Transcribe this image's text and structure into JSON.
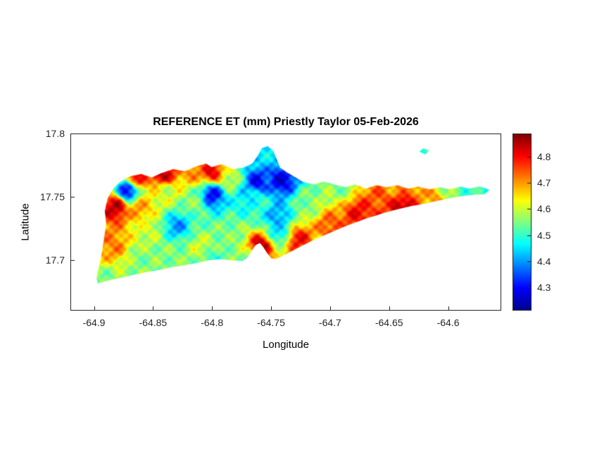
{
  "figure": {
    "background_color": "#ffffff",
    "axes_color": "#262626",
    "text_color": "#000000"
  },
  "chart_data": {
    "type": "heatmap",
    "title": "REFERENCE ET (mm) Priestly Taylor 05-Feb-2026",
    "xlabel": "Longitude",
    "ylabel": "Latitude",
    "xlim": [
      -64.92,
      -64.555
    ],
    "ylim": [
      17.66,
      17.8
    ],
    "grid": false,
    "xticks": {
      "values": [
        -64.9,
        -64.85,
        -64.8,
        -64.75,
        -64.7,
        -64.65,
        -64.6
      ],
      "labels": [
        "-64.9",
        "-64.85",
        "-64.8",
        "-64.75",
        "-64.7",
        "-64.65",
        "-64.6"
      ]
    },
    "yticks": {
      "values": [
        17.8,
        17.75,
        17.7
      ],
      "labels": [
        "17.8",
        "17.75",
        "17.7"
      ]
    },
    "colorbar": {
      "position": "right",
      "clim": [
        4.21,
        4.89
      ],
      "colormap_name": "jet",
      "colormap_stops": [
        [
          0.0,
          0,
          0,
          143
        ],
        [
          0.125,
          0,
          0,
          255
        ],
        [
          0.375,
          0,
          255,
          255
        ],
        [
          0.625,
          255,
          255,
          0
        ],
        [
          0.875,
          255,
          0,
          0
        ],
        [
          1.0,
          128,
          0,
          0
        ]
      ],
      "ticks": {
        "values": [
          4.3,
          4.4,
          4.5,
          4.6,
          4.7,
          4.8
        ],
        "labels": [
          "4.3",
          "4.4",
          "4.5",
          "4.6",
          "4.7",
          "4.8"
        ]
      }
    },
    "island_outline": [
      [
        -64.8902,
        17.7289
      ],
      [
        -64.8914,
        17.7389
      ],
      [
        -64.889,
        17.7489
      ],
      [
        -64.8842,
        17.7567
      ],
      [
        -64.8783,
        17.7622
      ],
      [
        -64.8693,
        17.7667
      ],
      [
        -64.8604,
        17.7683
      ],
      [
        -64.8514,
        17.7656
      ],
      [
        -64.8437,
        17.7689
      ],
      [
        -64.8335,
        17.7722
      ],
      [
        -64.8234,
        17.7706
      ],
      [
        -64.8138,
        17.7744
      ],
      [
        -64.8055,
        17.7767
      ],
      [
        -64.8007,
        17.7739
      ],
      [
        -64.7918,
        17.7761
      ],
      [
        -64.7828,
        17.7722
      ],
      [
        -64.7739,
        17.7733
      ],
      [
        -64.7661,
        17.7767
      ],
      [
        -64.7619,
        17.7822
      ],
      [
        -64.7578,
        17.7889
      ],
      [
        -64.753,
        17.7906
      ],
      [
        -64.7482,
        17.7867
      ],
      [
        -64.7452,
        17.78
      ],
      [
        -64.7423,
        17.7733
      ],
      [
        -64.7363,
        17.7694
      ],
      [
        -64.7291,
        17.7656
      ],
      [
        -64.7232,
        17.7622
      ],
      [
        -64.7142,
        17.76
      ],
      [
        -64.7053,
        17.7622
      ],
      [
        -64.6963,
        17.76
      ],
      [
        -64.6874,
        17.7578
      ],
      [
        -64.6784,
        17.76
      ],
      [
        -64.6695,
        17.7567
      ],
      [
        -64.6605,
        17.7594
      ],
      [
        -64.6516,
        17.7578
      ],
      [
        -64.6426,
        17.7594
      ],
      [
        -64.6337,
        17.7567
      ],
      [
        -64.6247,
        17.7583
      ],
      [
        -64.6158,
        17.7561
      ],
      [
        -64.6068,
        17.7578
      ],
      [
        -64.5979,
        17.7561
      ],
      [
        -64.5889,
        17.7583
      ],
      [
        -64.5812,
        17.7567
      ],
      [
        -64.574,
        17.7583
      ],
      [
        -64.5681,
        17.7572
      ],
      [
        -64.5645,
        17.7556
      ],
      [
        -64.5687,
        17.7522
      ],
      [
        -64.5788,
        17.7517
      ],
      [
        -64.589,
        17.7506
      ],
      [
        -64.5991,
        17.7489
      ],
      [
        -64.6098,
        17.7467
      ],
      [
        -64.6206,
        17.7444
      ],
      [
        -64.6307,
        17.7428
      ],
      [
        -64.6409,
        17.7406
      ],
      [
        -64.6504,
        17.7383
      ],
      [
        -64.6599,
        17.7356
      ],
      [
        -64.6695,
        17.7328
      ],
      [
        -64.679,
        17.7294
      ],
      [
        -64.6886,
        17.7261
      ],
      [
        -64.6981,
        17.7222
      ],
      [
        -64.7077,
        17.7183
      ],
      [
        -64.7166,
        17.7144
      ],
      [
        -64.725,
        17.7106
      ],
      [
        -64.7327,
        17.7067
      ],
      [
        -64.7399,
        17.7033
      ],
      [
        -64.7459,
        17.7006
      ],
      [
        -64.75,
        17.7011
      ],
      [
        -64.7536,
        17.7056
      ],
      [
        -64.7566,
        17.71
      ],
      [
        -64.7596,
        17.7133
      ],
      [
        -64.7632,
        17.7117
      ],
      [
        -64.7668,
        17.7067
      ],
      [
        -64.7703,
        17.7017
      ],
      [
        -64.7745,
        17.6989
      ],
      [
        -64.7828,
        17.6994
      ],
      [
        -64.7936,
        17.7006
      ],
      [
        -64.8037,
        17.6994
      ],
      [
        -64.8138,
        17.6972
      ],
      [
        -64.8246,
        17.6956
      ],
      [
        -64.8353,
        17.6939
      ],
      [
        -64.846,
        17.6917
      ],
      [
        -64.8568,
        17.69
      ],
      [
        -64.8675,
        17.6878
      ],
      [
        -64.8782,
        17.6856
      ],
      [
        -64.889,
        17.6833
      ],
      [
        -64.8973,
        17.6811
      ],
      [
        -64.8985,
        17.6856
      ],
      [
        -64.8961,
        17.6956
      ],
      [
        -64.8937,
        17.7067
      ],
      [
        -64.8919,
        17.7178
      ]
    ],
    "islets": [
      [
        [
          -64.6242,
          17.7861
        ],
        [
          -64.6206,
          17.7889
        ],
        [
          -64.6158,
          17.7872
        ],
        [
          -64.6188,
          17.7839
        ]
      ]
    ],
    "value_points": [
      [
        -64.882,
        17.742,
        4.85
      ],
      [
        -64.885,
        17.712,
        4.72
      ],
      [
        -64.862,
        17.74,
        4.7
      ],
      [
        -64.865,
        17.766,
        4.8
      ],
      [
        -64.842,
        17.768,
        4.85
      ],
      [
        -64.815,
        17.772,
        4.72
      ],
      [
        -64.8,
        17.77,
        4.82
      ],
      [
        -64.785,
        17.765,
        4.6
      ],
      [
        -64.872,
        17.755,
        4.3
      ],
      [
        -64.83,
        17.727,
        4.4
      ],
      [
        -64.8,
        17.752,
        4.3
      ],
      [
        -64.741,
        17.763,
        4.28
      ],
      [
        -64.762,
        17.762,
        4.3
      ],
      [
        -64.755,
        17.783,
        4.45
      ],
      [
        -64.77,
        17.75,
        4.45
      ],
      [
        -64.745,
        17.735,
        4.4
      ],
      [
        -64.815,
        17.745,
        4.55
      ],
      [
        -64.84,
        17.755,
        4.6
      ],
      [
        -64.855,
        17.725,
        4.6
      ],
      [
        -64.86,
        17.7,
        4.55
      ],
      [
        -64.89,
        17.682,
        4.55
      ],
      [
        -64.835,
        17.705,
        4.55
      ],
      [
        -64.81,
        17.71,
        4.6
      ],
      [
        -64.785,
        17.72,
        4.55
      ],
      [
        -64.8,
        17.7,
        4.5
      ],
      [
        -64.77,
        17.7,
        4.55
      ],
      [
        -64.759,
        17.711,
        4.85
      ],
      [
        -64.744,
        17.722,
        4.45
      ],
      [
        -64.726,
        17.716,
        4.8
      ],
      [
        -64.7,
        17.726,
        4.75
      ],
      [
        -64.676,
        17.737,
        4.8
      ],
      [
        -64.655,
        17.748,
        4.75
      ],
      [
        -64.64,
        17.742,
        4.85
      ],
      [
        -64.612,
        17.75,
        4.7
      ],
      [
        -64.578,
        17.754,
        4.5
      ],
      [
        -64.71,
        17.703,
        4.55
      ],
      [
        -64.72,
        17.745,
        4.55
      ],
      [
        -64.76,
        17.745,
        4.5
      ],
      [
        -64.69,
        17.758,
        4.55
      ],
      [
        -64.645,
        17.757,
        4.7
      ],
      [
        -64.6,
        17.757,
        4.55
      ],
      [
        -64.62,
        17.787,
        4.5
      ]
    ]
  }
}
